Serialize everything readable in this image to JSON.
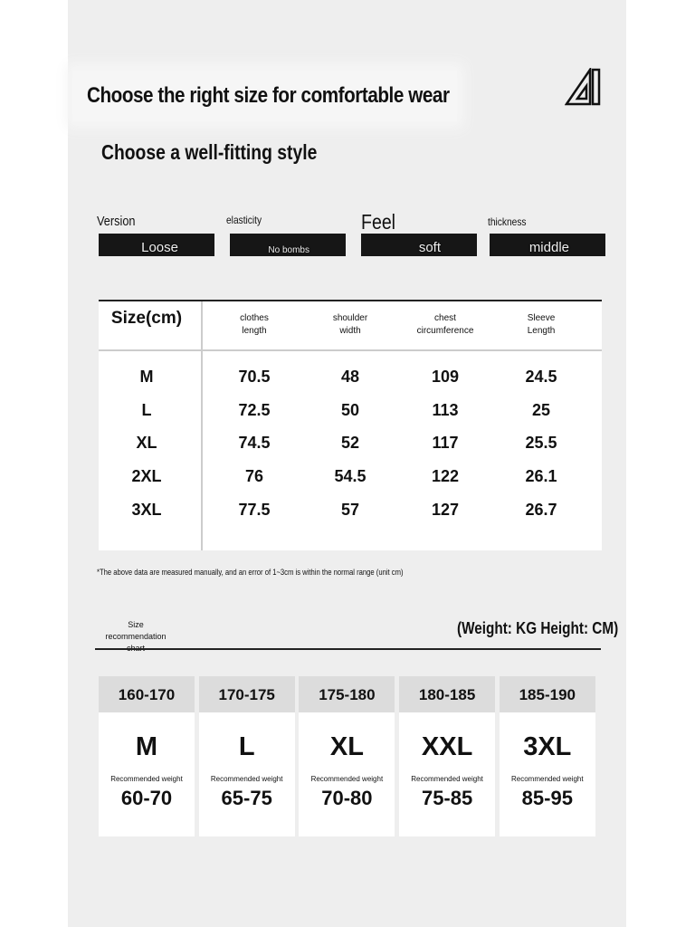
{
  "header": {
    "title": "Choose the right size for comfortable wear",
    "subtitle": "Choose a well-fitting style",
    "logo": "ruler-triangle-logo"
  },
  "attributes": [
    {
      "label": "Version",
      "value": "Loose"
    },
    {
      "label": "elasticity",
      "value": "No bombs"
    },
    {
      "label": "Feel",
      "value": "soft"
    },
    {
      "label": "thickness",
      "value": "middle"
    }
  ],
  "size_table": {
    "headers": [
      "Size(cm)",
      "clothes\nlength",
      "shoulder\nwidth",
      "chest\ncircumference",
      "Sleeve\nLength"
    ],
    "rows": [
      [
        "M",
        "70.5",
        "48",
        "109",
        "24.5"
      ],
      [
        "L",
        "72.5",
        "50",
        "113",
        "25"
      ],
      [
        "XL",
        "74.5",
        "52",
        "117",
        "25.5"
      ],
      [
        "2XL",
        "76",
        "54.5",
        "122",
        "26.1"
      ],
      [
        "3XL",
        "77.5",
        "57",
        "127",
        "26.7"
      ]
    ]
  },
  "note": "*The above data are measured manually, and an error of 1~3cm is within the normal range (unit cm)",
  "recommendation": {
    "label": "Size recommendation chart",
    "units": "(Weight: KG Height: CM)",
    "cards": [
      {
        "height": "160-170",
        "size": "M",
        "weight_label": "Recommended weight",
        "weight": "60-70"
      },
      {
        "height": "170-175",
        "size": "L",
        "weight_label": "Recommended weight",
        "weight": "65-75"
      },
      {
        "height": "175-180",
        "size": "XL",
        "weight_label": "Recommended weight",
        "weight": "70-80"
      },
      {
        "height": "180-185",
        "size": "XXL",
        "weight_label": "Recommended weight",
        "weight": "75-85"
      },
      {
        "height": "185-190",
        "size": "3XL",
        "weight_label": "Recommended weight",
        "weight": "85-95"
      }
    ]
  }
}
